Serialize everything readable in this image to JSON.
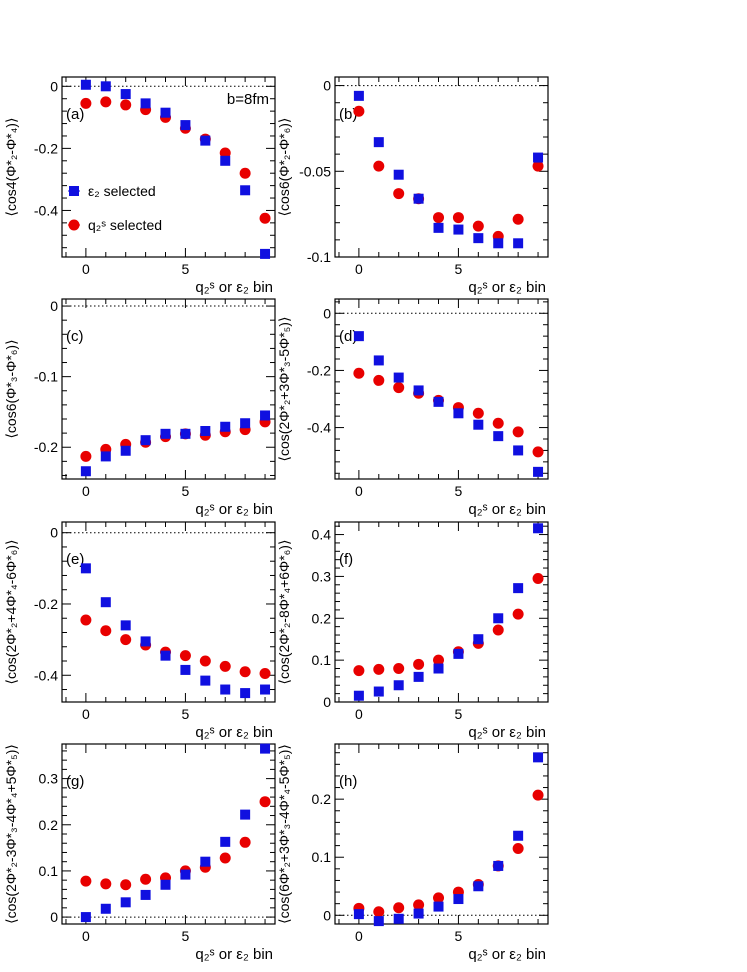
{
  "figure": {
    "x_axis_label": "q₂ˢ or ε₂ bin",
    "colors": {
      "eps2": "#1010e0",
      "q2s": "#e80000"
    },
    "legend": {
      "eps2_label": "ε₂ selected",
      "q2s_label": "q₂ˢ selected"
    }
  },
  "chart_data": [
    {
      "type": "scatter",
      "panel_label": "(a)",
      "annotation": "b=8fm",
      "ylabel": "⟨cos4(Φ*₂-Φ*₄)⟩",
      "xlim": [
        -1.2,
        9.5
      ],
      "ylim": [
        -0.55,
        0.03
      ],
      "x_ticks": [
        0,
        5
      ],
      "y_ticks": [
        0,
        -0.2,
        -0.4
      ],
      "y_tick_labels": [
        "0",
        "-0.2",
        "-0.4"
      ],
      "legend": true,
      "x": [
        0,
        1,
        2,
        3,
        4,
        5,
        6,
        7,
        8,
        9
      ],
      "series": [
        {
          "name": "ε₂ selected",
          "marker": "square",
          "values": [
            0.005,
            0.0,
            -0.025,
            -0.055,
            -0.085,
            -0.125,
            -0.175,
            -0.24,
            -0.335,
            -0.54
          ]
        },
        {
          "name": "q₂ˢ selected",
          "marker": "circle",
          "values": [
            -0.055,
            -0.05,
            -0.06,
            -0.075,
            -0.1,
            -0.135,
            -0.17,
            -0.215,
            -0.28,
            -0.425
          ]
        }
      ]
    },
    {
      "type": "scatter",
      "panel_label": "(b)",
      "ylabel": "⟨cos6(Φ*₂-Φ*₆)⟩",
      "xlim": [
        -1.2,
        9.5
      ],
      "ylim": [
        -0.1,
        0.005
      ],
      "x_ticks": [
        0,
        5
      ],
      "y_ticks": [
        0,
        -0.05,
        -0.1
      ],
      "y_tick_labels": [
        "0",
        "-0.05",
        "-0.1"
      ],
      "x": [
        0,
        1,
        2,
        3,
        4,
        5,
        6,
        7,
        8,
        9
      ],
      "series": [
        {
          "name": "ε₂ selected",
          "marker": "square",
          "values": [
            -0.006,
            -0.033,
            -0.052,
            -0.066,
            -0.083,
            -0.084,
            -0.089,
            -0.092,
            -0.092,
            -0.042
          ]
        },
        {
          "name": "q₂ˢ selected",
          "marker": "circle",
          "values": [
            -0.015,
            -0.047,
            -0.063,
            -0.066,
            -0.077,
            -0.077,
            -0.082,
            -0.088,
            -0.078,
            -0.047
          ]
        }
      ]
    },
    {
      "type": "scatter",
      "panel_label": "(c)",
      "ylabel": "⟨cos6(Φ*₃-Φ*₆)⟩",
      "xlim": [
        -1.2,
        9.5
      ],
      "ylim": [
        -0.245,
        0.01
      ],
      "x_ticks": [
        0,
        5
      ],
      "y_ticks": [
        0,
        -0.1,
        -0.2
      ],
      "y_tick_labels": [
        "0",
        "-0.1",
        "-0.2"
      ],
      "x": [
        0,
        1,
        2,
        3,
        4,
        5,
        6,
        7,
        8,
        9
      ],
      "series": [
        {
          "name": "ε₂ selected",
          "marker": "square",
          "values": [
            -0.234,
            -0.213,
            -0.205,
            -0.19,
            -0.181,
            -0.181,
            -0.177,
            -0.171,
            -0.166,
            -0.155
          ]
        },
        {
          "name": "q₂ˢ selected",
          "marker": "circle",
          "values": [
            -0.213,
            -0.203,
            -0.196,
            -0.193,
            -0.185,
            -0.181,
            -0.183,
            -0.178,
            -0.175,
            -0.164
          ]
        }
      ]
    },
    {
      "type": "scatter",
      "panel_label": "(d)",
      "ylabel": "⟨cos(2Φ*₂+3Φ*₃-5Φ*₅)⟩",
      "xlim": [
        -1.2,
        9.5
      ],
      "ylim": [
        -0.58,
        0.05
      ],
      "x_ticks": [
        0,
        5
      ],
      "y_ticks": [
        0,
        -0.2,
        -0.4
      ],
      "y_tick_labels": [
        "0",
        "-0.2",
        "-0.4"
      ],
      "x": [
        0,
        1,
        2,
        3,
        4,
        5,
        6,
        7,
        8,
        9
      ],
      "series": [
        {
          "name": "ε₂ selected",
          "marker": "square",
          "values": [
            -0.08,
            -0.165,
            -0.225,
            -0.27,
            -0.31,
            -0.35,
            -0.39,
            -0.43,
            -0.48,
            -0.555
          ]
        },
        {
          "name": "q₂ˢ selected",
          "marker": "circle",
          "values": [
            -0.21,
            -0.235,
            -0.26,
            -0.28,
            -0.305,
            -0.33,
            -0.35,
            -0.385,
            -0.415,
            -0.485
          ]
        }
      ]
    },
    {
      "type": "scatter",
      "panel_label": "(e)",
      "ylabel": "⟨cos(2Φ*₂+4Φ*₄-6Φ*₆)⟩",
      "xlim": [
        -1.2,
        9.5
      ],
      "ylim": [
        -0.475,
        0.03
      ],
      "x_ticks": [
        0,
        5
      ],
      "y_ticks": [
        0,
        -0.2,
        -0.4
      ],
      "y_tick_labels": [
        "0",
        "-0.2",
        "-0.4"
      ],
      "x": [
        0,
        1,
        2,
        3,
        4,
        5,
        6,
        7,
        8,
        9
      ],
      "series": [
        {
          "name": "ε₂ selected",
          "marker": "square",
          "values": [
            -0.1,
            -0.195,
            -0.26,
            -0.305,
            -0.345,
            -0.385,
            -0.415,
            -0.44,
            -0.45,
            -0.44
          ]
        },
        {
          "name": "q₂ˢ selected",
          "marker": "circle",
          "values": [
            -0.245,
            -0.275,
            -0.3,
            -0.315,
            -0.335,
            -0.345,
            -0.36,
            -0.375,
            -0.39,
            -0.395
          ]
        }
      ]
    },
    {
      "type": "scatter",
      "panel_label": "(f)",
      "ylabel": "⟨cos(2Φ*₂-8Φ*₄+6Φ*₆)⟩",
      "xlim": [
        -1.2,
        9.5
      ],
      "ylim": [
        0,
        0.43
      ],
      "x_ticks": [
        0,
        5
      ],
      "y_ticks": [
        0,
        0.1,
        0.2,
        0.3,
        0.4
      ],
      "y_tick_labels": [
        "0",
        "0.1",
        "0.2",
        "0.3",
        "0.4"
      ],
      "x": [
        0,
        1,
        2,
        3,
        4,
        5,
        6,
        7,
        8,
        9
      ],
      "series": [
        {
          "name": "ε₂ selected",
          "marker": "square",
          "values": [
            0.015,
            0.025,
            0.04,
            0.06,
            0.08,
            0.115,
            0.15,
            0.2,
            0.272,
            0.415
          ]
        },
        {
          "name": "q₂ˢ selected",
          "marker": "circle",
          "values": [
            0.075,
            0.078,
            0.08,
            0.09,
            0.1,
            0.12,
            0.14,
            0.172,
            0.21,
            0.295
          ]
        }
      ]
    },
    {
      "type": "scatter",
      "panel_label": "(g)",
      "ylabel": "⟨cos(2Φ*₂-3Φ*₃-4Φ*₄+5Φ*₅)⟩",
      "xlim": [
        -1.2,
        9.5
      ],
      "ylim": [
        -0.015,
        0.375
      ],
      "x_ticks": [
        0,
        5
      ],
      "y_ticks": [
        0,
        0.1,
        0.2,
        0.3
      ],
      "y_tick_labels": [
        "0",
        "0.1",
        "0.2",
        "0.3"
      ],
      "x": [
        0,
        1,
        2,
        3,
        4,
        5,
        6,
        7,
        8,
        9
      ],
      "series": [
        {
          "name": "ε₂ selected",
          "marker": "square",
          "values": [
            0.0,
            0.018,
            0.032,
            0.048,
            0.07,
            0.092,
            0.12,
            0.163,
            0.222,
            0.365
          ]
        },
        {
          "name": "q₂ˢ selected",
          "marker": "circle",
          "values": [
            0.078,
            0.072,
            0.07,
            0.082,
            0.085,
            0.1,
            0.108,
            0.128,
            0.162,
            0.25
          ]
        }
      ]
    },
    {
      "type": "scatter",
      "panel_label": "(h)",
      "ylabel": "⟨cos(6Φ*₂+3Φ*₃-4Φ*₄-5Φ*₅)⟩",
      "xlim": [
        -1.2,
        9.5
      ],
      "ylim": [
        -0.015,
        0.295
      ],
      "x_ticks": [
        0,
        5
      ],
      "y_ticks": [
        0,
        0.1,
        0.2
      ],
      "y_tick_labels": [
        "0",
        "0.1",
        "0.2"
      ],
      "x": [
        0,
        1,
        2,
        3,
        4,
        5,
        6,
        7,
        8,
        9
      ],
      "series": [
        {
          "name": "ε₂ selected",
          "marker": "square",
          "values": [
            0.002,
            -0.01,
            -0.006,
            0.003,
            0.015,
            0.028,
            0.05,
            0.085,
            0.137,
            0.272
          ]
        },
        {
          "name": "q₂ˢ selected",
          "marker": "circle",
          "values": [
            0.012,
            0.006,
            0.013,
            0.018,
            0.03,
            0.04,
            0.053,
            0.085,
            0.115,
            0.207
          ]
        }
      ]
    }
  ]
}
